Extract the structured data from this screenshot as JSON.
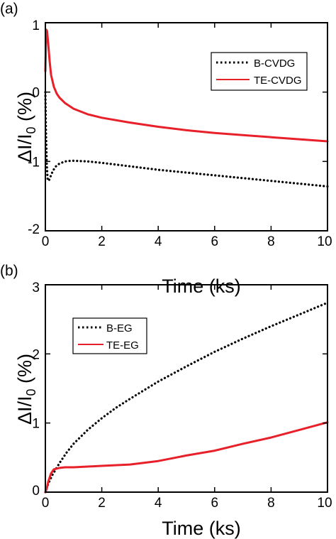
{
  "chart_data": [
    {
      "type": "line",
      "panel_label": "(a)",
      "xlabel": "Time (ks)",
      "ylabel_main": "ΔI/I",
      "ylabel_sub": "0",
      "ylabel_unit": " (%)",
      "xlim": [
        0,
        10
      ],
      "ylim": [
        -2,
        1
      ],
      "xticks": [
        "0",
        "2",
        "4",
        "6",
        "8",
        "10"
      ],
      "yticks": [
        "-2",
        "-1",
        "0",
        "1"
      ],
      "grid": false,
      "legend_position": "top-right",
      "series": [
        {
          "name": "B-CVDG",
          "style": "dotted",
          "color": "#000000",
          "x": [
            0,
            0.02,
            0.05,
            0.08,
            0.12,
            0.18,
            0.25,
            0.35,
            0.5,
            0.7,
            0.9,
            1.0,
            1.5,
            2,
            3,
            4,
            5,
            6,
            7,
            8,
            9,
            10
          ],
          "y": [
            0,
            -0.55,
            -1.05,
            -1.25,
            -1.28,
            -1.22,
            -1.15,
            -1.08,
            -1.03,
            -1.0,
            -0.99,
            -0.99,
            -1.0,
            -1.02,
            -1.07,
            -1.12,
            -1.16,
            -1.2,
            -1.24,
            -1.28,
            -1.32,
            -1.36
          ]
        },
        {
          "name": "TE-CVDG",
          "style": "solid",
          "color": "#e8202a",
          "x": [
            0,
            0.03,
            0.06,
            0.1,
            0.15,
            0.2,
            0.3,
            0.4,
            0.5,
            0.7,
            1.0,
            1.5,
            2,
            3,
            4,
            5,
            6,
            7,
            8,
            9,
            10
          ],
          "y": [
            0.3,
            0.9,
            0.88,
            0.7,
            0.45,
            0.25,
            0.08,
            -0.02,
            -0.08,
            -0.16,
            -0.24,
            -0.32,
            -0.37,
            -0.44,
            -0.5,
            -0.55,
            -0.59,
            -0.62,
            -0.65,
            -0.68,
            -0.71
          ]
        }
      ]
    },
    {
      "type": "line",
      "panel_label": "(b)",
      "xlabel": "Time (ks)",
      "ylabel_main": "ΔI/I",
      "ylabel_sub": "0",
      "ylabel_unit": " (%)",
      "xlim": [
        0,
        10
      ],
      "ylim": [
        0,
        3
      ],
      "xticks": [
        "0",
        "2",
        "4",
        "6",
        "8",
        "10"
      ],
      "yticks": [
        "0",
        "1",
        "2",
        "3"
      ],
      "grid": false,
      "legend_position": "top-left",
      "series": [
        {
          "name": "B-EG",
          "style": "dotted",
          "color": "#000000",
          "x": [
            0,
            0.1,
            0.25,
            0.5,
            0.75,
            1,
            1.5,
            2,
            2.5,
            3,
            4,
            5,
            6,
            7,
            8,
            9,
            10
          ],
          "y": [
            0,
            0.12,
            0.25,
            0.42,
            0.57,
            0.7,
            0.9,
            1.07,
            1.22,
            1.35,
            1.6,
            1.82,
            2.03,
            2.22,
            2.4,
            2.57,
            2.74
          ]
        },
        {
          "name": "TE-EG",
          "style": "solid",
          "color": "#e8202a",
          "x": [
            0,
            0.05,
            0.1,
            0.2,
            0.3,
            0.5,
            0.7,
            1,
            1.5,
            2,
            3,
            4,
            5,
            6,
            7,
            8,
            9,
            10
          ],
          "y": [
            0,
            0.05,
            0.15,
            0.27,
            0.33,
            0.35,
            0.36,
            0.36,
            0.37,
            0.38,
            0.4,
            0.45,
            0.53,
            0.6,
            0.7,
            0.79,
            0.9,
            1.01
          ]
        }
      ]
    }
  ]
}
